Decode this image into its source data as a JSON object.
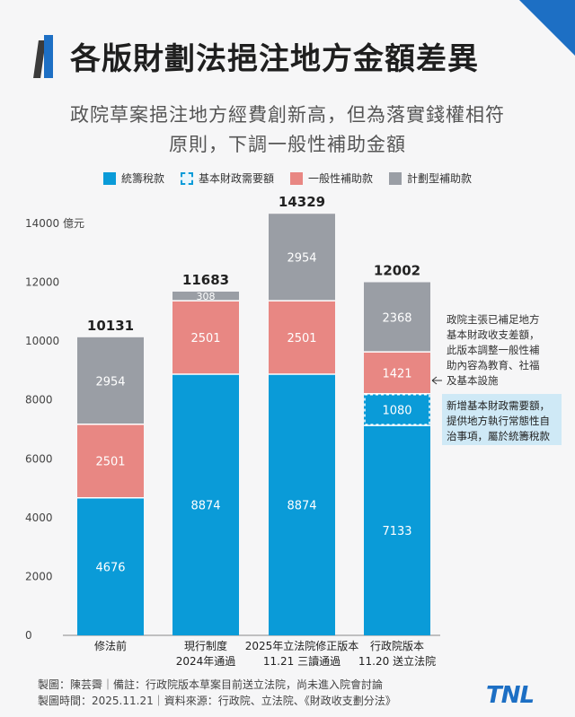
{
  "title": "各版財劃法挹注地方金額差異",
  "subtitle_lines": [
    "政院草案挹注地方經費創新高，但為落實錢權相符",
    "原則，下調一般性補助金額"
  ],
  "chart_data": {
    "type": "bar",
    "stacked": true,
    "unit_label": "億元",
    "ylim": [
      0,
      14000
    ],
    "yticks": [
      0,
      2000,
      4000,
      6000,
      8000,
      10000,
      12000,
      14000
    ],
    "grid": false,
    "legend_position": "top",
    "categories": [
      {
        "line1": "修法前",
        "line2": ""
      },
      {
        "line1": "現行制度",
        "line2": "2024年通過"
      },
      {
        "line1": "2025年立法院修正版本",
        "line2": "11.21 三讀通過"
      },
      {
        "line1": "行政院版本",
        "line2": "11.20 送立法院"
      }
    ],
    "series": [
      {
        "name": "統籌稅款",
        "color": "#0a9bd8",
        "values": [
          4676,
          8874,
          8874,
          7133
        ]
      },
      {
        "name": "基本財政需要額",
        "color": "#0a9bd8",
        "dashed": true,
        "values": [
          0,
          0,
          0,
          1080
        ]
      },
      {
        "name": "一般性補助款",
        "color": "#e88783",
        "values": [
          2501,
          2501,
          2501,
          1421
        ]
      },
      {
        "name": "計劃型補助款",
        "color": "#9a9ea5",
        "values": [
          2954,
          308,
          2954,
          2368
        ]
      }
    ],
    "totals": [
      10131,
      11683,
      14329,
      12002
    ],
    "annotations": [
      {
        "text_lines": [
          "政院主張已補足地方",
          "基本財政收支差額，",
          "此版本調整一般性補",
          "助內容為教育、社福",
          "及基本設施"
        ],
        "target_series": 2,
        "target_bar": 3
      },
      {
        "text_lines": [
          "新增基本財政需要額，",
          "提供地方執行常態性自",
          "治事項，屬於統籌稅款"
        ],
        "target_series": 1,
        "target_bar": 3,
        "highlight": "#cfe9f6"
      }
    ]
  },
  "footer": {
    "line1": "製圖：陳芸霽｜備註：行政院版本草案目前送立法院，尚未進入院會討論",
    "line2": "製圖時間：2025.11.21｜資料來源：行政院、立法院、《財政收支劃分法》"
  },
  "logo": "TNL"
}
